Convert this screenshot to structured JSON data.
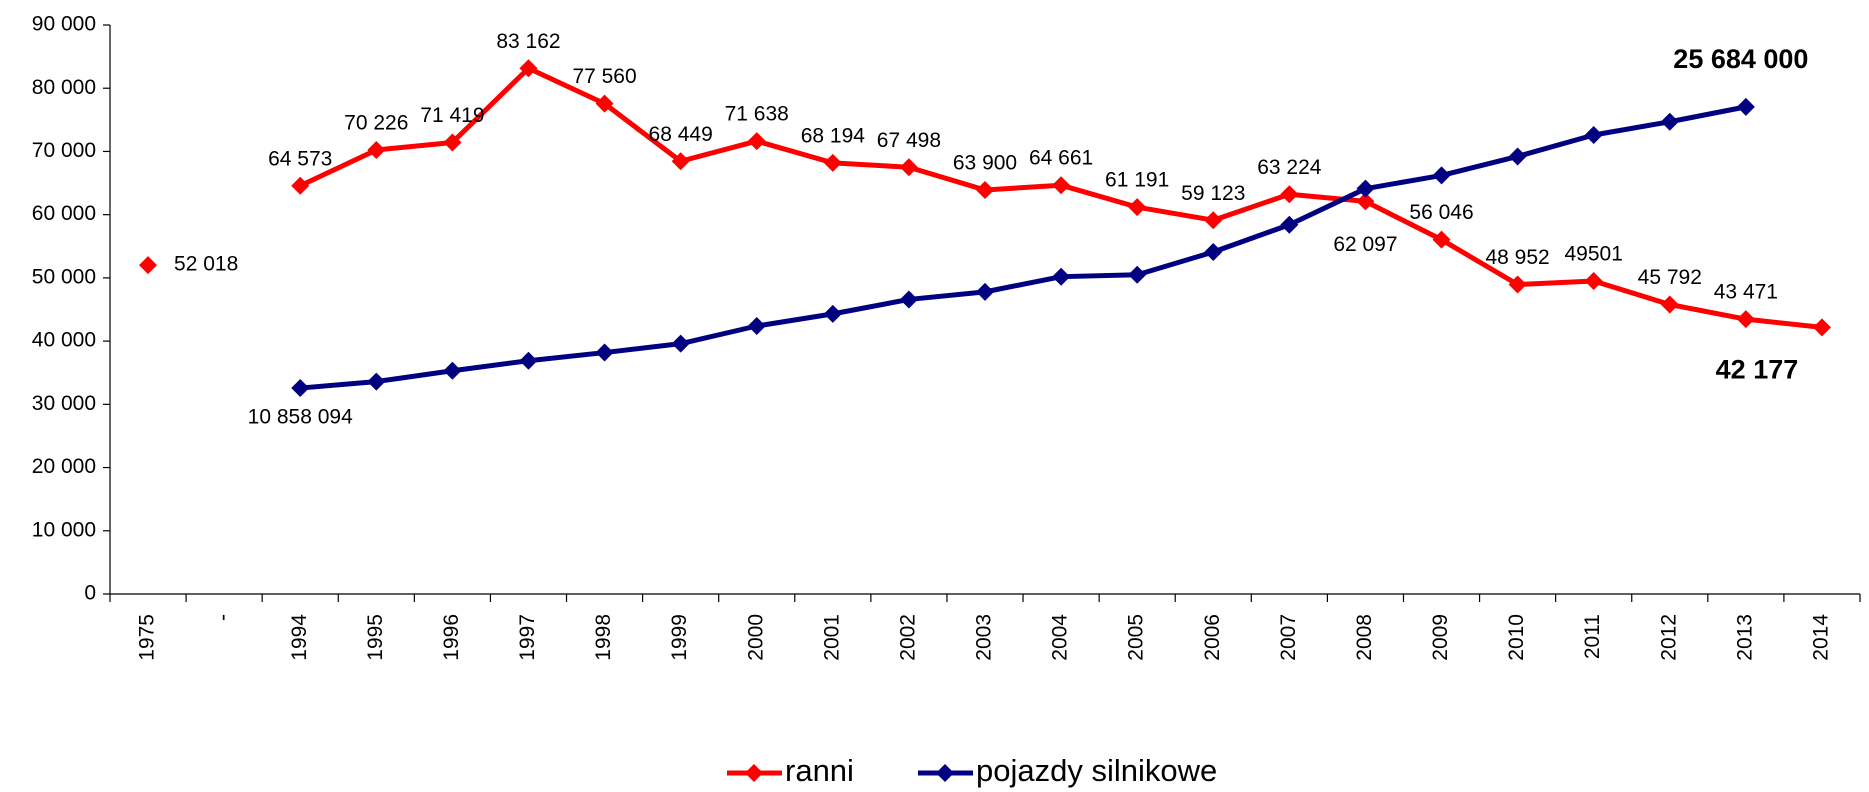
{
  "chart_data": {
    "type": "line",
    "categories": [
      "1975",
      "-",
      "1994",
      "1995",
      "1996",
      "1997",
      "1998",
      "1999",
      "2000",
      "2001",
      "2002",
      "2003",
      "2004",
      "2005",
      "2006",
      "2007",
      "2008",
      "2009",
      "2010",
      "2011",
      "2012",
      "2013",
      "2014"
    ],
    "series": [
      {
        "name": "ranni",
        "color": "#ff0000",
        "values": [
          52018,
          null,
          64573,
          70226,
          71419,
          83162,
          77560,
          68449,
          71638,
          68194,
          67498,
          63900,
          64661,
          61191,
          59123,
          63224,
          62097,
          56046,
          48952,
          49501,
          45792,
          43471,
          42177
        ],
        "value_labels": [
          "52 018",
          null,
          "64 573",
          "70 226",
          "71 419",
          "83 162",
          "77 560",
          "68 449",
          "71 638",
          "68 194",
          "67 498",
          "63 900",
          "64 661",
          "61 191",
          "59 123",
          "63 224",
          "62 097",
          "56 046",
          "48 952",
          "49501",
          "45 792",
          "43 471",
          "42 177"
        ]
      },
      {
        "name": "pojazdy silnikowe",
        "color": "#000080",
        "axis": "y2",
        "values": [
          null,
          null,
          10858094,
          11200000,
          11770000,
          12300000,
          12730000,
          13200000,
          14130000,
          14770000,
          15530000,
          15930000,
          16730000,
          16830000,
          18030000,
          19470000,
          21370000,
          22070000,
          23070000,
          24200000,
          24900000,
          25684000,
          null
        ],
        "value_labels": [
          null,
          null,
          "10 858 094",
          null,
          null,
          null,
          null,
          null,
          null,
          null,
          null,
          null,
          null,
          null,
          null,
          null,
          null,
          null,
          null,
          null,
          null,
          "25 684 000",
          null
        ]
      }
    ],
    "ylim": [
      0,
      90000
    ],
    "yticks": [
      0,
      {
        "value": 10000,
        "label": "10 000"
      },
      {
        "value": 20000,
        "label": "20 000"
      },
      {
        "value": 30000,
        "label": "30 000"
      },
      {
        "value": 40000,
        "label": "40 000"
      },
      {
        "value": 50000,
        "label": "50 000"
      },
      {
        "value": 60000,
        "label": "60 000"
      },
      {
        "value": 70000,
        "label": "70 000"
      },
      {
        "value": 80000,
        "label": "80 000"
      },
      {
        "value": 90000,
        "label": "90 000"
      }
    ],
    "y2lim": [
      0,
      30000000
    ],
    "grid": false,
    "legend": "bottom"
  }
}
